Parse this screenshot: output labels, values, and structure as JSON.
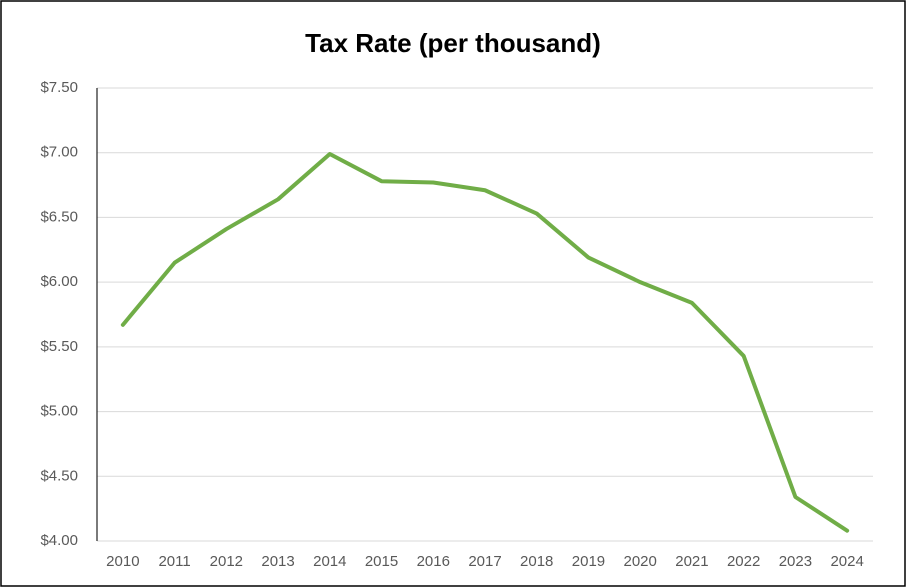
{
  "chart_data": {
    "type": "line",
    "title": "Tax Rate (per thousand)",
    "categories": [
      "2010",
      "2011",
      "2012",
      "2013",
      "2014",
      "2015",
      "2016",
      "2017",
      "2018",
      "2019",
      "2020",
      "2021",
      "2022",
      "2023",
      "2024"
    ],
    "series": [
      {
        "name": "Tax Rate",
        "color": "#70ad47",
        "values": [
          5.67,
          6.15,
          6.41,
          6.64,
          6.99,
          6.78,
          6.77,
          6.71,
          6.53,
          6.19,
          6.0,
          5.84,
          5.43,
          4.34,
          4.08
        ]
      }
    ],
    "ylim": [
      4.0,
      7.5
    ],
    "yticks": [
      {
        "value": 4.0,
        "label": "$4.00"
      },
      {
        "value": 4.5,
        "label": "$4.50"
      },
      {
        "value": 5.0,
        "label": "$5.00"
      },
      {
        "value": 5.5,
        "label": "$5.50"
      },
      {
        "value": 6.0,
        "label": "$6.00"
      },
      {
        "value": 6.5,
        "label": "$6.50"
      },
      {
        "value": 7.0,
        "label": "$7.00"
      },
      {
        "value": 7.5,
        "label": "$7.50"
      }
    ],
    "grid": true
  }
}
